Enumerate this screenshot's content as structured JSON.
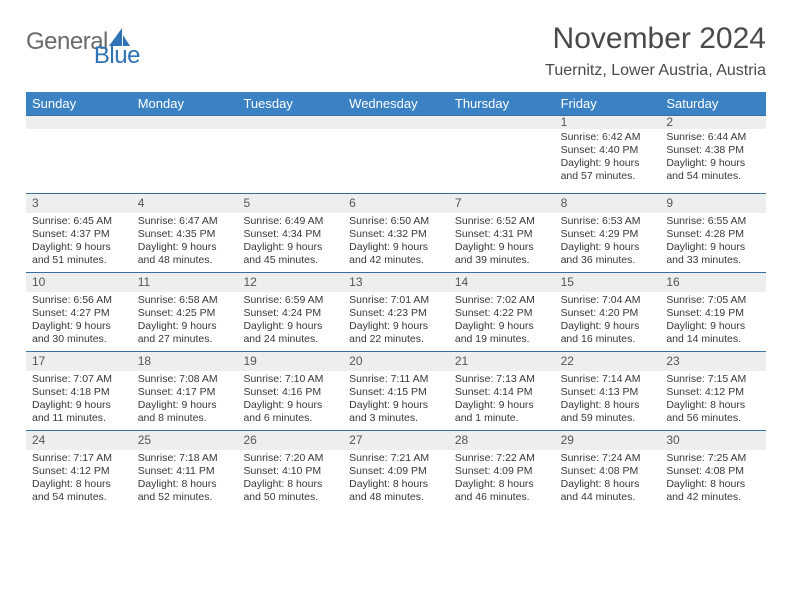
{
  "logo": {
    "word1": "General",
    "word2": "Blue"
  },
  "title": "November 2024",
  "location": "Tuernitz, Lower Austria, Austria",
  "colors": {
    "header_bar": "#3b82c4",
    "band": "#eceef0",
    "rule": "#3b6ea0",
    "text": "#383838",
    "title_text": "#4a4a4a",
    "logo_gray": "#6a6a6a",
    "logo_blue": "#2f72b6"
  },
  "fonts": {
    "title_pt": 30,
    "location_pt": 16,
    "weekday_pt": 13,
    "daynum_pt": 12,
    "body_pt": 10.5
  },
  "weekdays": [
    "Sunday",
    "Monday",
    "Tuesday",
    "Wednesday",
    "Thursday",
    "Friday",
    "Saturday"
  ],
  "weeks": [
    [
      null,
      null,
      null,
      null,
      null,
      {
        "n": "1",
        "sr": "Sunrise: 6:42 AM",
        "ss": "Sunset: 4:40 PM",
        "d1": "Daylight: 9 hours",
        "d2": "and 57 minutes."
      },
      {
        "n": "2",
        "sr": "Sunrise: 6:44 AM",
        "ss": "Sunset: 4:38 PM",
        "d1": "Daylight: 9 hours",
        "d2": "and 54 minutes."
      }
    ],
    [
      {
        "n": "3",
        "sr": "Sunrise: 6:45 AM",
        "ss": "Sunset: 4:37 PM",
        "d1": "Daylight: 9 hours",
        "d2": "and 51 minutes."
      },
      {
        "n": "4",
        "sr": "Sunrise: 6:47 AM",
        "ss": "Sunset: 4:35 PM",
        "d1": "Daylight: 9 hours",
        "d2": "and 48 minutes."
      },
      {
        "n": "5",
        "sr": "Sunrise: 6:49 AM",
        "ss": "Sunset: 4:34 PM",
        "d1": "Daylight: 9 hours",
        "d2": "and 45 minutes."
      },
      {
        "n": "6",
        "sr": "Sunrise: 6:50 AM",
        "ss": "Sunset: 4:32 PM",
        "d1": "Daylight: 9 hours",
        "d2": "and 42 minutes."
      },
      {
        "n": "7",
        "sr": "Sunrise: 6:52 AM",
        "ss": "Sunset: 4:31 PM",
        "d1": "Daylight: 9 hours",
        "d2": "and 39 minutes."
      },
      {
        "n": "8",
        "sr": "Sunrise: 6:53 AM",
        "ss": "Sunset: 4:29 PM",
        "d1": "Daylight: 9 hours",
        "d2": "and 36 minutes."
      },
      {
        "n": "9",
        "sr": "Sunrise: 6:55 AM",
        "ss": "Sunset: 4:28 PM",
        "d1": "Daylight: 9 hours",
        "d2": "and 33 minutes."
      }
    ],
    [
      {
        "n": "10",
        "sr": "Sunrise: 6:56 AM",
        "ss": "Sunset: 4:27 PM",
        "d1": "Daylight: 9 hours",
        "d2": "and 30 minutes."
      },
      {
        "n": "11",
        "sr": "Sunrise: 6:58 AM",
        "ss": "Sunset: 4:25 PM",
        "d1": "Daylight: 9 hours",
        "d2": "and 27 minutes."
      },
      {
        "n": "12",
        "sr": "Sunrise: 6:59 AM",
        "ss": "Sunset: 4:24 PM",
        "d1": "Daylight: 9 hours",
        "d2": "and 24 minutes."
      },
      {
        "n": "13",
        "sr": "Sunrise: 7:01 AM",
        "ss": "Sunset: 4:23 PM",
        "d1": "Daylight: 9 hours",
        "d2": "and 22 minutes."
      },
      {
        "n": "14",
        "sr": "Sunrise: 7:02 AM",
        "ss": "Sunset: 4:22 PM",
        "d1": "Daylight: 9 hours",
        "d2": "and 19 minutes."
      },
      {
        "n": "15",
        "sr": "Sunrise: 7:04 AM",
        "ss": "Sunset: 4:20 PM",
        "d1": "Daylight: 9 hours",
        "d2": "and 16 minutes."
      },
      {
        "n": "16",
        "sr": "Sunrise: 7:05 AM",
        "ss": "Sunset: 4:19 PM",
        "d1": "Daylight: 9 hours",
        "d2": "and 14 minutes."
      }
    ],
    [
      {
        "n": "17",
        "sr": "Sunrise: 7:07 AM",
        "ss": "Sunset: 4:18 PM",
        "d1": "Daylight: 9 hours",
        "d2": "and 11 minutes."
      },
      {
        "n": "18",
        "sr": "Sunrise: 7:08 AM",
        "ss": "Sunset: 4:17 PM",
        "d1": "Daylight: 9 hours",
        "d2": "and 8 minutes."
      },
      {
        "n": "19",
        "sr": "Sunrise: 7:10 AM",
        "ss": "Sunset: 4:16 PM",
        "d1": "Daylight: 9 hours",
        "d2": "and 6 minutes."
      },
      {
        "n": "20",
        "sr": "Sunrise: 7:11 AM",
        "ss": "Sunset: 4:15 PM",
        "d1": "Daylight: 9 hours",
        "d2": "and 3 minutes."
      },
      {
        "n": "21",
        "sr": "Sunrise: 7:13 AM",
        "ss": "Sunset: 4:14 PM",
        "d1": "Daylight: 9 hours",
        "d2": "and 1 minute."
      },
      {
        "n": "22",
        "sr": "Sunrise: 7:14 AM",
        "ss": "Sunset: 4:13 PM",
        "d1": "Daylight: 8 hours",
        "d2": "and 59 minutes."
      },
      {
        "n": "23",
        "sr": "Sunrise: 7:15 AM",
        "ss": "Sunset: 4:12 PM",
        "d1": "Daylight: 8 hours",
        "d2": "and 56 minutes."
      }
    ],
    [
      {
        "n": "24",
        "sr": "Sunrise: 7:17 AM",
        "ss": "Sunset: 4:12 PM",
        "d1": "Daylight: 8 hours",
        "d2": "and 54 minutes."
      },
      {
        "n": "25",
        "sr": "Sunrise: 7:18 AM",
        "ss": "Sunset: 4:11 PM",
        "d1": "Daylight: 8 hours",
        "d2": "and 52 minutes."
      },
      {
        "n": "26",
        "sr": "Sunrise: 7:20 AM",
        "ss": "Sunset: 4:10 PM",
        "d1": "Daylight: 8 hours",
        "d2": "and 50 minutes."
      },
      {
        "n": "27",
        "sr": "Sunrise: 7:21 AM",
        "ss": "Sunset: 4:09 PM",
        "d1": "Daylight: 8 hours",
        "d2": "and 48 minutes."
      },
      {
        "n": "28",
        "sr": "Sunrise: 7:22 AM",
        "ss": "Sunset: 4:09 PM",
        "d1": "Daylight: 8 hours",
        "d2": "and 46 minutes."
      },
      {
        "n": "29",
        "sr": "Sunrise: 7:24 AM",
        "ss": "Sunset: 4:08 PM",
        "d1": "Daylight: 8 hours",
        "d2": "and 44 minutes."
      },
      {
        "n": "30",
        "sr": "Sunrise: 7:25 AM",
        "ss": "Sunset: 4:08 PM",
        "d1": "Daylight: 8 hours",
        "d2": "and 42 minutes."
      }
    ]
  ]
}
